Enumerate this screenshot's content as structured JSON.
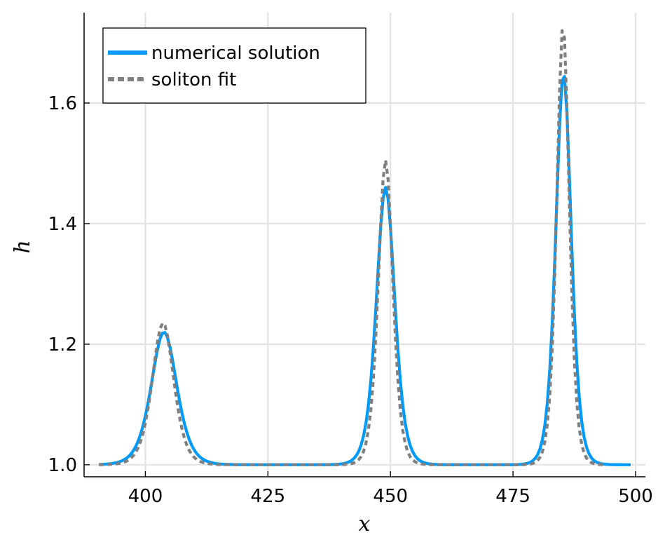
{
  "chart_data": {
    "type": "line",
    "title": "",
    "xlabel": "x",
    "ylabel": "h",
    "xlim": [
      387.5,
      502
    ],
    "ylim": [
      0.98,
      1.75
    ],
    "xticks": [
      400,
      425,
      450,
      475,
      500
    ],
    "yticks": [
      1.0,
      1.2,
      1.4,
      1.6
    ],
    "xtick_labels": [
      "400",
      "425",
      "450",
      "475",
      "500"
    ],
    "ytick_labels": [
      "1.0",
      "1.2",
      "1.4",
      "1.6"
    ],
    "grid": true,
    "legend_position": "top-left",
    "colors": {
      "numerical": "#009af9",
      "fit": "#808080",
      "grid": "#e3e3e3"
    },
    "series": [
      {
        "name": "numerical solution",
        "style": "solid",
        "peaks": [
          {
            "center": 403.8,
            "amplitude": 0.22,
            "width": 3.5
          },
          {
            "center": 449.0,
            "amplitude": 0.46,
            "width": 2.5
          },
          {
            "center": 485.3,
            "amplitude": 0.65,
            "width": 2.1
          }
        ],
        "baseline": 1.0,
        "x_range": [
          390.5,
          499
        ]
      },
      {
        "name": "soliton fit",
        "style": "dashed",
        "peaks": [
          {
            "center": 403.6,
            "amplitude": 0.235,
            "width": 2.95
          },
          {
            "center": 449.0,
            "amplitude": 0.505,
            "width": 2.0
          },
          {
            "center": 485.2,
            "amplitude": 0.73,
            "width": 1.72
          }
        ],
        "baseline": 1.0,
        "x_range": [
          390.5,
          494
        ]
      }
    ]
  }
}
